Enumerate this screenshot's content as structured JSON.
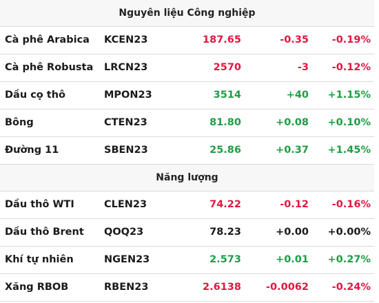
{
  "colors": {
    "up": "#1f9d45",
    "down": "#e3163f",
    "flat": "#1a1a1a",
    "header_bg": "#f7f7f7"
  },
  "sections": [
    {
      "title": "Nguyên liệu Công nghiệp",
      "rows": [
        {
          "name": "Cà phê Arabica",
          "code": "KCEN23",
          "price": "187.65",
          "change": "-0.35",
          "pct": "-0.19%",
          "trend": "down"
        },
        {
          "name": "Cà phê Robusta",
          "code": "LRCN23",
          "price": "2570",
          "change": "-3",
          "pct": "-0.12%",
          "trend": "down"
        },
        {
          "name": "Dầu cọ thô",
          "code": "MPON23",
          "price": "3514",
          "change": "+40",
          "pct": "+1.15%",
          "trend": "up"
        },
        {
          "name": "Bông",
          "code": "CTEN23",
          "price": "81.80",
          "change": "+0.08",
          "pct": "+0.10%",
          "trend": "up"
        },
        {
          "name": "Đường 11",
          "code": "SBEN23",
          "price": "25.86",
          "change": "+0.37",
          "pct": "+1.45%",
          "trend": "up"
        }
      ]
    },
    {
      "title": "Năng lượng",
      "rows": [
        {
          "name": "Dầu thô WTI",
          "code": "CLEN23",
          "price": "74.22",
          "change": "-0.12",
          "pct": "-0.16%",
          "trend": "down"
        },
        {
          "name": "Dầu thô Brent",
          "code": "QOQ23",
          "price": "78.23",
          "change": "+0.00",
          "pct": "+0.00%",
          "trend": "flat"
        },
        {
          "name": "Khí tự nhiên",
          "code": "NGEN23",
          "price": "2.573",
          "change": "+0.01",
          "pct": "+0.27%",
          "trend": "up"
        },
        {
          "name": "Xăng RBOB",
          "code": "RBEN23",
          "price": "2.6138",
          "change": "-0.0062",
          "pct": "-0.24%",
          "trend": "down"
        }
      ]
    }
  ]
}
